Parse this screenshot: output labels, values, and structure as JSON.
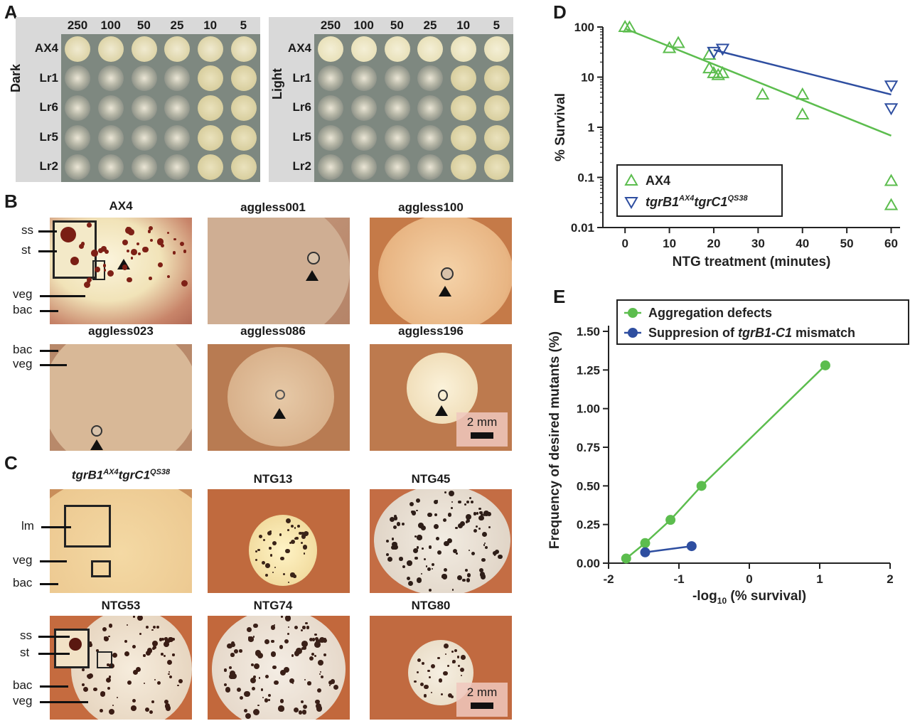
{
  "panels": {
    "A": "A",
    "B": "B",
    "C": "C",
    "D": "D",
    "E": "E"
  },
  "panelA": {
    "columns": [
      "250",
      "100",
      "50",
      "25",
      "10",
      "5"
    ],
    "rows": [
      "AX4",
      "Lr1",
      "Lr6",
      "Lr5",
      "Lr2"
    ],
    "left_side": "Dark",
    "right_side": "Light"
  },
  "panelB": {
    "tiles": [
      "AX4",
      "aggless001",
      "aggless100",
      "aggless023",
      "aggless086",
      "aggless196"
    ],
    "labels_top": [
      "ss",
      "st",
      "veg",
      "bac"
    ],
    "labels_bottom": [
      "bac",
      "veg"
    ],
    "scale": "2 mm"
  },
  "panelC": {
    "tiles": [
      "NTG13",
      "NTG45",
      "NTG53",
      "NTG74",
      "NTG80"
    ],
    "first_tile": {
      "base": "tgrB1",
      "sup1": "AX4",
      "mid": "tgrC1",
      "sup2": "QS38"
    },
    "labels_top": [
      "lm",
      "veg",
      "bac"
    ],
    "labels_bottom": [
      "ss",
      "st",
      "bac",
      "veg"
    ],
    "scale": "2 mm"
  },
  "chart_data": [
    {
      "panel": "D",
      "type": "scatter",
      "xlabel": "NTG treatment (minutes)",
      "ylabel": "% Survival",
      "xlim": [
        -5,
        62
      ],
      "ylim": [
        0.01,
        100
      ],
      "yscale": "log",
      "xticks": [
        0,
        10,
        20,
        30,
        40,
        50,
        60
      ],
      "yticks": [
        0.01,
        0.1,
        1,
        10,
        100
      ],
      "ytick_labels": [
        "0.01",
        "0.1",
        "1",
        "10",
        "100"
      ],
      "legend_position": "bottom-left",
      "colors": {
        "ax4": "#5cbd4e",
        "tgr": "#2e4ea0"
      },
      "series": [
        {
          "name": "AX4",
          "marker": "triangle-up",
          "color": "#5cbd4e",
          "x": [
            0,
            1,
            10,
            12,
            19,
            19,
            20,
            21,
            22,
            31,
            40,
            40,
            60,
            60
          ],
          "y": [
            100,
            98,
            38,
            48,
            28,
            15,
            12,
            11,
            12,
            4.5,
            4.5,
            1.8,
            0.085,
            0.028
          ],
          "fit": {
            "x": [
              0,
              60
            ],
            "y": [
              93,
              0.68
            ]
          }
        },
        {
          "name": "tgrB1tgrC1",
          "name_parts": {
            "base": "tgrB1",
            "sup1": "AX4",
            "mid": "tgrC1",
            "sup2": "QS38"
          },
          "marker": "triangle-down",
          "color": "#2e4ea0",
          "x": [
            20,
            22,
            60,
            60
          ],
          "y": [
            32,
            37,
            6.8,
            2.4
          ],
          "fit": {
            "x": [
              20,
              60
            ],
            "y": [
              35,
              4.5
            ]
          }
        }
      ]
    },
    {
      "panel": "E",
      "type": "line",
      "xlabel_pre": "-log",
      "xlabel_sub": "10",
      "xlabel_post": " (% survival)",
      "ylabel": "Frequency of desired mutants (%)",
      "xlim": [
        -2,
        2
      ],
      "ylim": [
        0,
        1.5
      ],
      "xticks": [
        -2,
        -1,
        0,
        1,
        2
      ],
      "yticks": [
        0,
        0.25,
        0.5,
        0.75,
        1.0,
        1.25,
        1.5
      ],
      "ytick_labels": [
        "0.00",
        "0.25",
        "0.50",
        "0.75",
        "1.00",
        "1.25",
        "1.50"
      ],
      "legend_position": "top",
      "series": [
        {
          "name": "Aggregation defects",
          "color": "#5cbd4e",
          "x": [
            -1.75,
            -1.48,
            -1.12,
            -0.68,
            1.08
          ],
          "y": [
            0.03,
            0.13,
            0.28,
            0.5,
            1.28
          ]
        },
        {
          "name_pre": "Suppresion of ",
          "name_em": "tgrB1-C1",
          "name_post": " mismatch",
          "color": "#2e4ea0",
          "x": [
            -1.48,
            -0.82
          ],
          "y": [
            0.07,
            0.11
          ]
        }
      ]
    }
  ]
}
